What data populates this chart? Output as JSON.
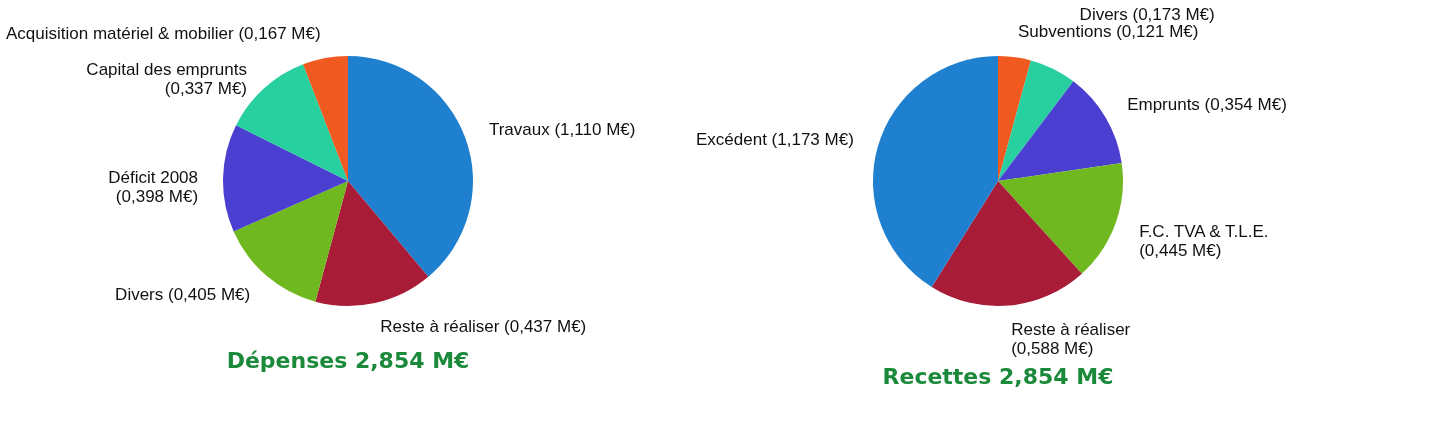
{
  "chart_data": [
    {
      "type": "pie",
      "title": "Dépenses 2,854 M€",
      "categories": [
        "Travaux (1,110 M€)",
        "Reste à réaliser (0,437 M€)",
        "Divers (0,405 M€)",
        "Déficit 2008\n(0,398 M€)",
        "Capital des emprunts\n(0,337 M€)",
        "Acquisition matériel & mobilier (0,167 M€)"
      ],
      "values": [
        1.11,
        0.437,
        0.405,
        0.398,
        0.337,
        0.167
      ],
      "colors": [
        "#1f80d0",
        "#a81c38",
        "#70b820",
        "#4a3fd0",
        "#28d0a0",
        "#f05a20"
      ]
    },
    {
      "type": "pie",
      "title": "Recettes 2,854 M€",
      "categories": [
        "Subventions (0,121 M€)",
        "Divers (0,173 M€)",
        "Emprunts (0,354 M€)",
        "F.C. TVA & T.L.E.\n(0,445 M€)",
        "Reste à réaliser\n(0,588 M€)",
        "Excédent (1,173 M€)"
      ],
      "values": [
        0.121,
        0.173,
        0.354,
        0.445,
        0.588,
        1.173
      ],
      "colors": [
        "#f05a20",
        "#28d0a0",
        "#4a3fd0",
        "#70b820",
        "#a81c38",
        "#1f80d0"
      ]
    }
  ]
}
